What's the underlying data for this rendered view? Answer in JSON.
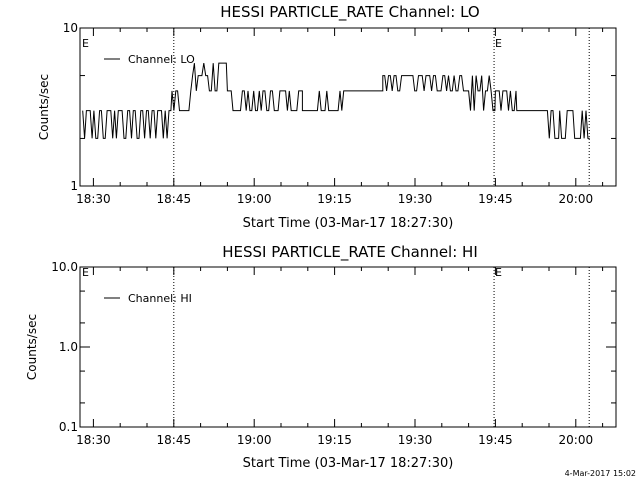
{
  "stamp": "4-Mar-2017 15:02",
  "chart_data": [
    {
      "type": "line",
      "title": "HESSI PARTICLE_RATE Channel: LO",
      "xlabel": "Start Time (03-Mar-17 18:27:30)",
      "ylabel": "Counts/sec",
      "y_scale": "log",
      "ylim": [
        1,
        10
      ],
      "xlim": [
        "18:27:30",
        "20:07:30"
      ],
      "x_ticks": [
        "18:30",
        "18:45",
        "19:00",
        "19:15",
        "19:30",
        "19:45",
        "20:00"
      ],
      "y_ticks": [
        {
          "value": 1,
          "label": "1"
        },
        {
          "value": 10,
          "label": "10"
        }
      ],
      "legend": "top-left",
      "event_lines": [
        {
          "time": "18:45:00",
          "label": ""
        },
        {
          "time": "19:44:45",
          "label": "E"
        },
        {
          "time": "20:02:30",
          "label": ""
        }
      ],
      "left_marker": "E",
      "series": [
        {
          "name": "Channel: LO",
          "x_minutes_start": "18:28:00",
          "segments": [
            [
              "18:28:00",
              "18:44:40",
              [
                3,
                2
              ]
            ],
            [
              "18:44:40",
              "18:48:30",
              [
                3,
                4
              ]
            ],
            [
              "18:48:30",
              "18:55:00",
              [
                4,
                5,
                6
              ]
            ],
            [
              "18:55:00",
              "19:09:00",
              [
                3,
                4
              ]
            ],
            [
              "19:09:00",
              "19:17:00",
              [
                3,
                4
              ]
            ],
            [
              "19:17:00",
              "19:24:00",
              [
                4
              ]
            ],
            [
              "19:24:00",
              "19:40:00",
              [
                4,
                5
              ]
            ],
            [
              "19:40:00",
              "19:45:00",
              [
                3,
                4,
                5
              ]
            ],
            [
              "19:45:00",
              "19:49:00",
              [
                4,
                3
              ]
            ],
            [
              "19:49:00",
              "19:54:00",
              [
                3
              ]
            ],
            [
              "19:54:00",
              "19:57:00",
              [
                2,
                3
              ]
            ],
            [
              "19:57:00",
              "20:02:40",
              [
                3,
                2
              ]
            ]
          ]
        }
      ]
    },
    {
      "type": "line",
      "title": "HESSI PARTICLE_RATE Channel: HI",
      "xlabel": "Start Time (03-Mar-17 18:27:30)",
      "ylabel": "Counts/sec",
      "y_scale": "log",
      "ylim": [
        0.1,
        10
      ],
      "xlim": [
        "18:27:30",
        "20:07:30"
      ],
      "x_ticks": [
        "18:30",
        "18:45",
        "19:00",
        "19:15",
        "19:30",
        "19:45",
        "20:00"
      ],
      "y_ticks": [
        {
          "value": 0.1,
          "label": "0.1"
        },
        {
          "value": 1,
          "label": "1.0"
        },
        {
          "value": 10,
          "label": "10.0"
        }
      ],
      "legend": "top-left",
      "event_lines": [
        {
          "time": "18:45:00",
          "label": ""
        },
        {
          "time": "19:44:45",
          "label": "E"
        },
        {
          "time": "20:02:30",
          "label": ""
        }
      ],
      "left_marker": "E",
      "series": [
        {
          "name": "Channel: HI",
          "segments": []
        }
      ]
    }
  ]
}
